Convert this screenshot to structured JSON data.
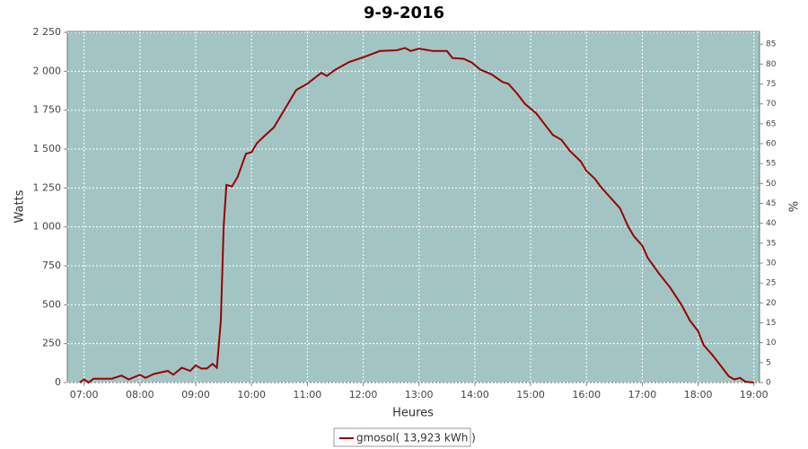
{
  "chart_data": {
    "type": "line",
    "title": "9-9-2016",
    "y_label": "Watts",
    "x_label": "Heures",
    "y2_label": "%",
    "x": [
      6.92,
      7.0,
      7.08,
      7.17,
      7.5,
      7.67,
      7.8,
      8.0,
      8.1,
      8.25,
      8.5,
      8.6,
      8.75,
      8.9,
      9.0,
      9.1,
      9.2,
      9.3,
      9.38,
      9.45,
      9.5,
      9.55,
      9.65,
      9.75,
      9.9,
      10.0,
      10.1,
      10.25,
      10.4,
      10.6,
      10.8,
      11.0,
      11.25,
      11.35,
      11.5,
      11.75,
      12.0,
      12.15,
      12.3,
      12.6,
      12.75,
      12.85,
      13.0,
      13.25,
      13.5,
      13.6,
      13.8,
      13.95,
      14.1,
      14.3,
      14.5,
      14.6,
      14.75,
      14.9,
      15.1,
      15.25,
      15.4,
      15.55,
      15.7,
      15.9,
      16.0,
      16.15,
      16.25,
      16.4,
      16.6,
      16.75,
      16.85,
      17.0,
      17.1,
      17.3,
      17.5,
      17.7,
      17.85,
      18.0,
      18.1,
      18.25,
      18.4,
      18.55,
      18.65,
      18.75,
      18.85,
      19.0
    ],
    "series": [
      {
        "name": "gmosol( 13,923 kWh )",
        "color": "#990000",
        "values": [
          0,
          20,
          0,
          25,
          25,
          45,
          20,
          50,
          30,
          55,
          75,
          50,
          95,
          75,
          110,
          90,
          90,
          120,
          95,
          400,
          1000,
          1270,
          1260,
          1320,
          1470,
          1480,
          1540,
          1590,
          1640,
          1760,
          1880,
          1920,
          1990,
          1970,
          2010,
          2060,
          2090,
          2110,
          2130,
          2135,
          2150,
          2130,
          2145,
          2130,
          2130,
          2085,
          2080,
          2055,
          2010,
          1980,
          1930,
          1920,
          1860,
          1790,
          1730,
          1660,
          1590,
          1560,
          1490,
          1420,
          1360,
          1310,
          1260,
          1200,
          1120,
          1000,
          940,
          880,
          800,
          700,
          610,
          500,
          400,
          330,
          240,
          180,
          110,
          40,
          20,
          30,
          5,
          0
        ]
      }
    ],
    "xlim": [
      6.7,
      19.1
    ],
    "xticks": [
      {
        "value": 7,
        "label": "07:00"
      },
      {
        "value": 8,
        "label": "08:00"
      },
      {
        "value": 9,
        "label": "09:00"
      },
      {
        "value": 10,
        "label": "10:00"
      },
      {
        "value": 11,
        "label": "11:00"
      },
      {
        "value": 12,
        "label": "12:00"
      },
      {
        "value": 13,
        "label": "13:00"
      },
      {
        "value": 14,
        "label": "14:00"
      },
      {
        "value": 15,
        "label": "15:00"
      },
      {
        "value": 16,
        "label": "16:00"
      },
      {
        "value": 17,
        "label": "17:00"
      },
      {
        "value": 18,
        "label": "18:00"
      },
      {
        "value": 19,
        "label": "19:00"
      }
    ],
    "ylim": [
      0,
      2256
    ],
    "yticks": [
      0,
      250,
      500,
      750,
      {
        "value": 1000,
        "label": "1 000"
      },
      {
        "value": 1250,
        "label": "1 250"
      },
      {
        "value": 1500,
        "label": "1 500"
      },
      {
        "value": 1750,
        "label": "1 750"
      },
      {
        "value": 2000,
        "label": "2 000"
      },
      {
        "value": 2250,
        "label": "2 250"
      }
    ],
    "y2lim": [
      0,
      88.2
    ],
    "y2ticks": [
      0,
      5,
      10,
      15,
      20,
      25,
      30,
      35,
      40,
      45,
      50,
      55,
      60,
      65,
      70,
      75,
      80,
      85
    ],
    "grid": true,
    "background": "#a2c5c4",
    "legend": "bottom"
  }
}
